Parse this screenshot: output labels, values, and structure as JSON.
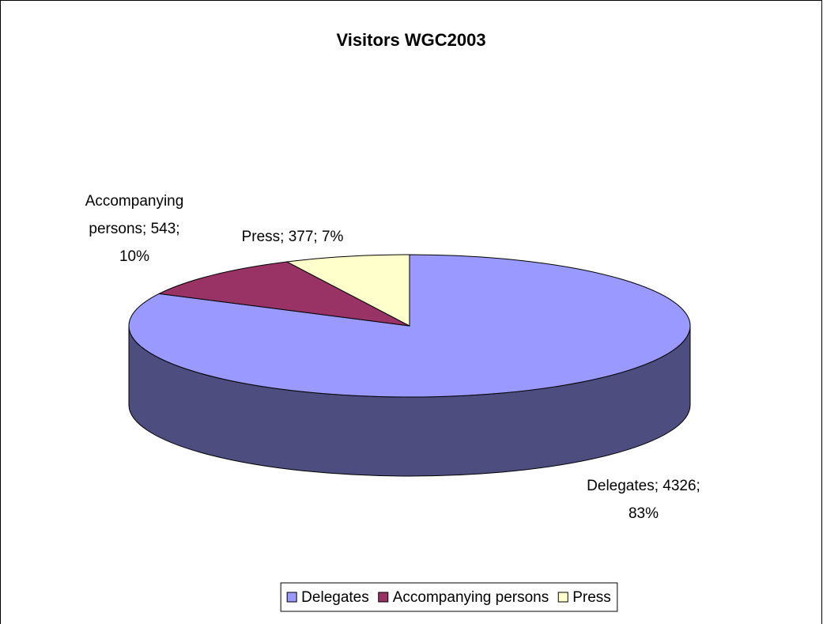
{
  "chart_data": {
    "type": "pie3d",
    "title": "Visitors WGC2003",
    "categories": [
      "Delegates",
      "Accompanying persons",
      "Press"
    ],
    "values": [
      4326,
      543,
      377
    ],
    "value_labels": [
      "Delegates; 4326; 83%",
      "Accompanying persons; 543; 10%",
      "Press; 377; 7%"
    ],
    "colors": [
      "#9999ff",
      "#993366",
      "#ffffcc"
    ],
    "legend": "bottom"
  }
}
